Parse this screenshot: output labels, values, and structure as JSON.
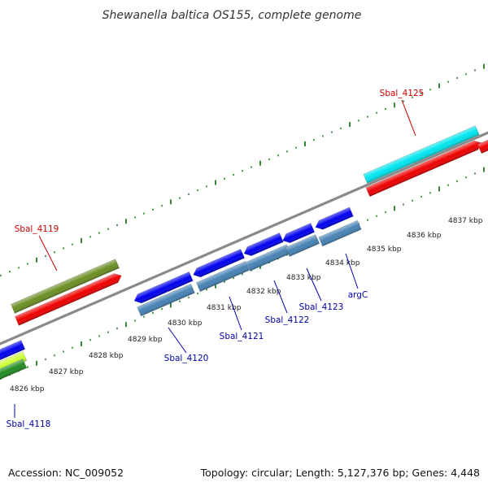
{
  "title": "Shewanella baltica OS155, complete genome",
  "footer": {
    "accession": "Accession: NC_009052",
    "summary": "Topology: circular; Length: 5,127,376 bp; Genes: 4,448"
  },
  "scale_labels": [
    "4826 kbp",
    "4827 kbp",
    "4828 kbp",
    "4829 kbp",
    "4830 kbp",
    "4831 kbp",
    "4832 kbp",
    "4833 kbp",
    "4834 kbp",
    "4835 kbp",
    "4836 kbp",
    "4837 kbp"
  ],
  "gene_labels": {
    "Sbal_4119": "Sbal_4119",
    "Sbal_4125": "Sbal_4125",
    "Sbal_4118": "Sbal_4118",
    "Sbal_4120": "Sbal_4120",
    "Sbal_4121": "Sbal_4121",
    "Sbal_4122": "Sbal_4122",
    "Sbal_4123": "Sbal_4123",
    "argC": "argC"
  },
  "colors": {
    "forward_label": "#cc0000",
    "reverse_label": "#0000aa",
    "backbone": "#8a8a8a",
    "tick": "#1f7a1f",
    "cds_red": "#ee0000",
    "cds_blue": "#0000ee",
    "cds_steel": "#4682b4",
    "cds_olive": "#6b8e23",
    "cds_cyan": "#00e5ee",
    "cds_lime": "#ccff33",
    "cds_green": "#228b22"
  }
}
